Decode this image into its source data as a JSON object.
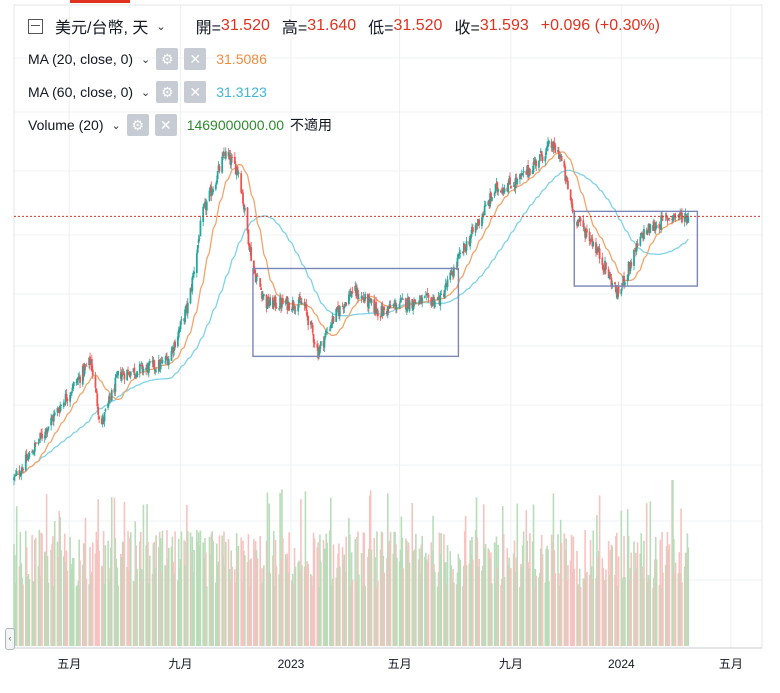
{
  "header": {
    "symbol": "美元/台幣, 天",
    "open_label": "開=",
    "open": "31.520",
    "high_label": "高=",
    "high": "31.640",
    "low_label": "低=",
    "low": "31.520",
    "close_label": "收=",
    "close": "31.593",
    "change": "+0.096 (+0.30%)"
  },
  "indicators": [
    {
      "label": "MA (20, close, 0)",
      "value": "31.5086",
      "color": "#f08c3c"
    },
    {
      "label": "MA (60, close, 0)",
      "value": "31.3123",
      "color": "#3fb6d6"
    },
    {
      "label": "Volume (20)",
      "value": "1469000000.00",
      "extra": "不適用",
      "color": "#2e8b2e"
    }
  ],
  "colors": {
    "up": "#26a69a",
    "down": "#ef5350",
    "ma20": "#f4a46a",
    "ma60": "#7fd3e6",
    "vol_up": "#b9dcb9",
    "vol_down": "#f6c3c0",
    "last_price_line": "#e0321e",
    "box": "#7b87b8",
    "grid": "#eef0f3"
  },
  "chart_data": {
    "type": "candlestick",
    "title": "美元/台幣, 天",
    "x_tick_labels": [
      "五月",
      "九月",
      "2023",
      "五月",
      "九月",
      "2024",
      "五月"
    ],
    "ylim": [
      27.0,
      33.6
    ],
    "last_price": 31.593,
    "anchors": [
      {
        "x": "2022-03-01",
        "y": 28.6
      },
      {
        "x": "2022-03-20",
        "y": 28.9
      },
      {
        "x": "2022-04-25",
        "y": 29.5
      },
      {
        "x": "2022-05-25",
        "y": 29.95
      },
      {
        "x": "2022-06-05",
        "y": 29.2
      },
      {
        "x": "2022-06-25",
        "y": 29.8
      },
      {
        "x": "2022-08-10",
        "y": 29.9
      },
      {
        "x": "2022-08-20",
        "y": 30.0
      },
      {
        "x": "2022-09-10",
        "y": 30.6
      },
      {
        "x": "2022-09-25",
        "y": 31.6
      },
      {
        "x": "2022-10-20",
        "y": 32.3
      },
      {
        "x": "2022-11-05",
        "y": 32.1
      },
      {
        "x": "2022-11-10",
        "y": 31.7
      },
      {
        "x": "2022-11-20",
        "y": 31.0
      },
      {
        "x": "2022-12-05",
        "y": 30.6
      },
      {
        "x": "2023-01-15",
        "y": 30.6
      },
      {
        "x": "2023-01-31",
        "y": 30.05
      },
      {
        "x": "2023-02-15",
        "y": 30.4
      },
      {
        "x": "2023-03-10",
        "y": 30.75
      },
      {
        "x": "2023-04-10",
        "y": 30.5
      },
      {
        "x": "2023-05-01",
        "y": 30.6
      },
      {
        "x": "2023-06-15",
        "y": 30.65
      },
      {
        "x": "2023-07-05",
        "y": 31.1
      },
      {
        "x": "2023-08-15",
        "y": 31.9
      },
      {
        "x": "2023-09-10",
        "y": 32.0
      },
      {
        "x": "2023-10-15",
        "y": 32.4
      },
      {
        "x": "2023-10-25",
        "y": 32.3
      },
      {
        "x": "2023-11-10",
        "y": 31.6
      },
      {
        "x": "2023-12-01",
        "y": 31.3
      },
      {
        "x": "2023-12-28",
        "y": 30.7
      },
      {
        "x": "2024-01-25",
        "y": 31.4
      },
      {
        "x": "2024-02-25",
        "y": 31.6
      },
      {
        "x": "2024-03-15",
        "y": 31.593
      }
    ],
    "boxes": [
      {
        "x_start": "2022-11-20",
        "x_end": "2023-07-05",
        "y_low": 30.0,
        "y_high": 31.0
      },
      {
        "x_start": "2023-11-10",
        "x_end": "2024-03-25",
        "y_low": 30.8,
        "y_high": 31.65
      }
    ],
    "series": [
      {
        "name": "MA (20, close, 0)",
        "last": 31.5086
      },
      {
        "name": "MA (60, close, 0)",
        "last": 31.3123
      }
    ]
  }
}
